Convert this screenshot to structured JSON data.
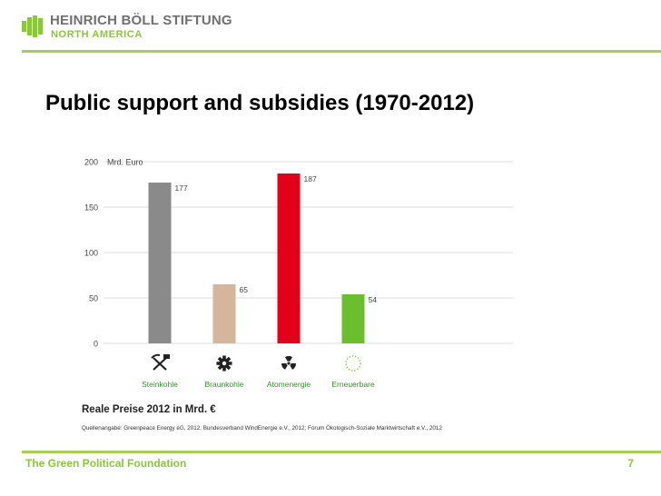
{
  "header": {
    "logo_line1": "HEINRICH BÖLL STIFTUNG",
    "logo_line2": "NORTH AMERICA"
  },
  "slide": {
    "title": "Public support and subsidies (1970-2012)",
    "page_number": "7"
  },
  "footer": {
    "text": "The Green Political Foundation"
  },
  "colors": {
    "green": "#8cc63f",
    "rule": "#a5cf55",
    "grey_bar": "#8a8a8a",
    "tan_bar": "#d5b59c",
    "red_bar": "#e2001a",
    "green_bar": "#6bbf2e"
  },
  "chart_data": {
    "type": "bar",
    "categories": [
      "Steinkohle",
      "Braunkohle",
      "Atomenergie",
      "Erneuerbare"
    ],
    "values": [
      177,
      65,
      187,
      54
    ],
    "icons": [
      "pick-and-hammer-icon",
      "gear-icon",
      "radiation-icon",
      "dotted-circle-icon"
    ],
    "bar_colors": [
      "#8a8a8a",
      "#d5b59c",
      "#e2001a",
      "#6bbf2e"
    ],
    "ylabel": "Mrd. Euro",
    "yticks": [
      0,
      50,
      100,
      150,
      200
    ],
    "ylim": [
      0,
      200
    ],
    "grid": true,
    "caption": "Reale Preise 2012 in Mrd. €",
    "source": "Quellenangabe: Greenpeace Energy eG, 2012; Bundesverband WindEnergie e.V., 2012; Forum Ökologisch-Soziale Marktwirtschaft e.V., 2012"
  }
}
